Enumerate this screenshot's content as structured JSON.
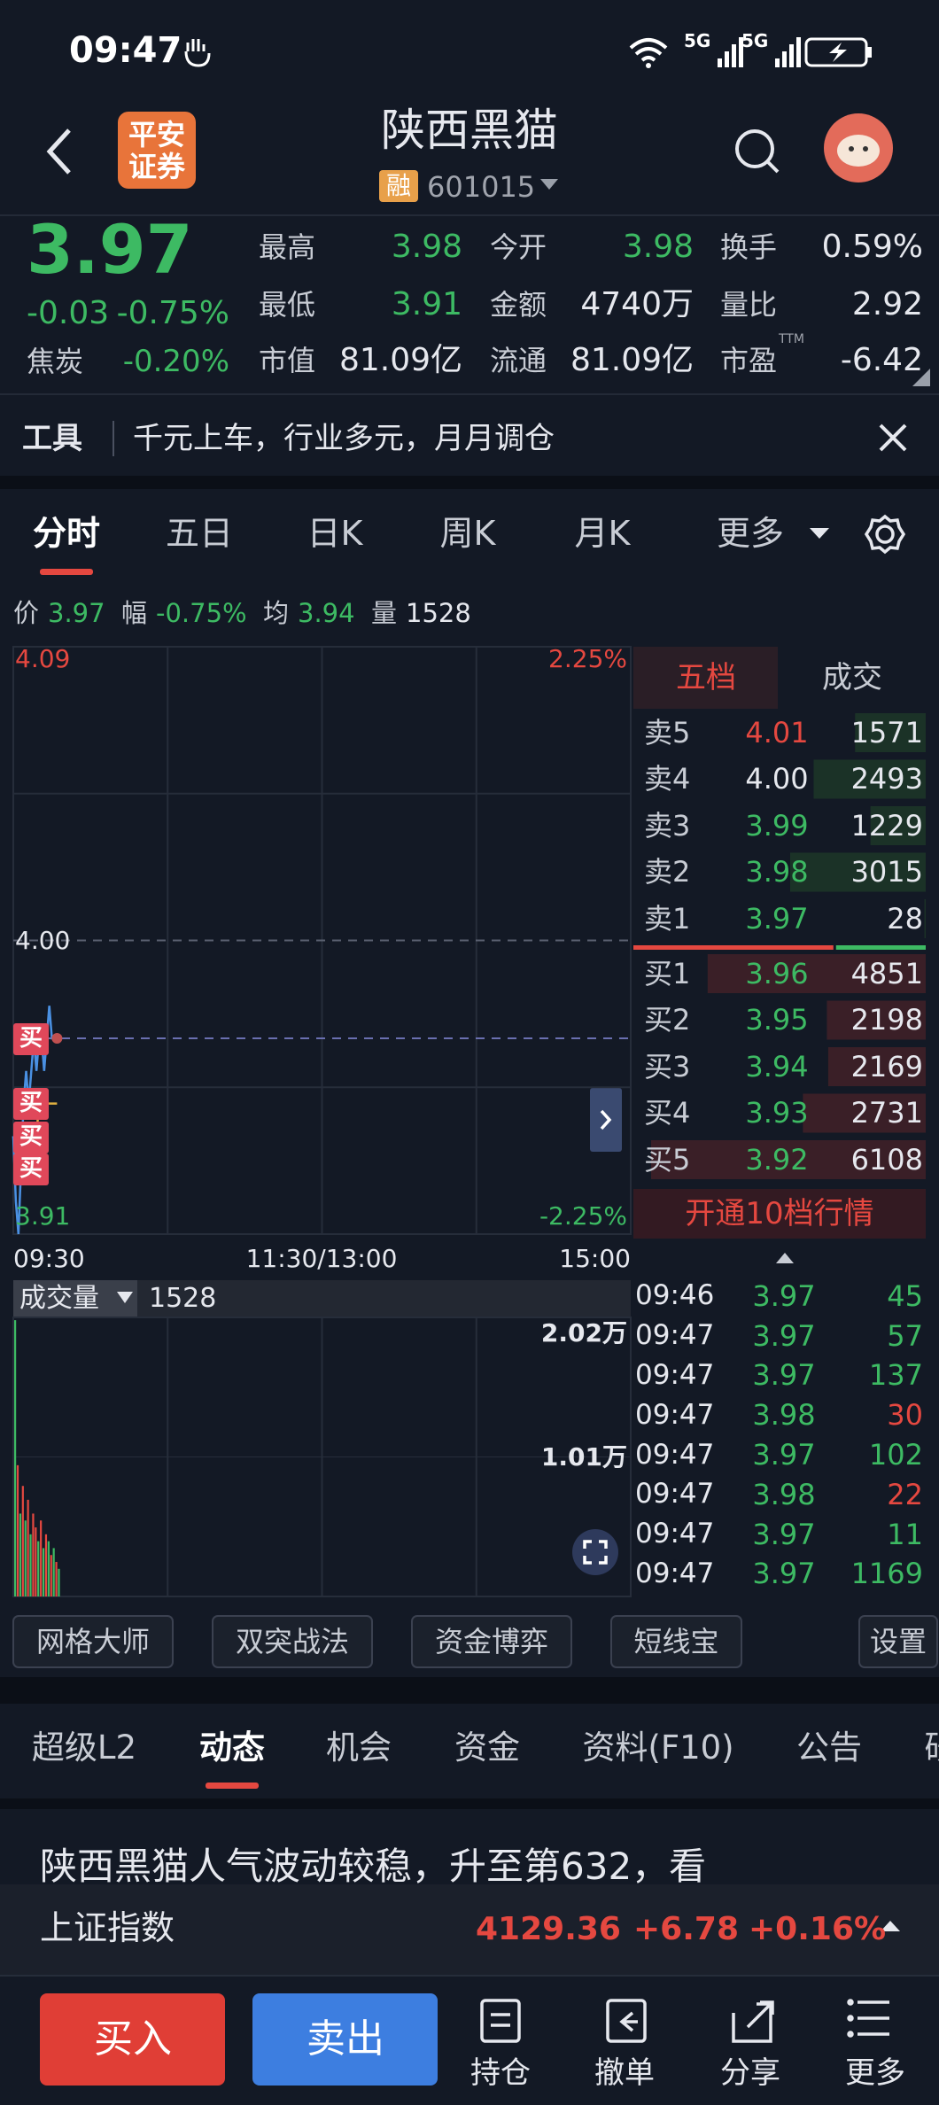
{
  "status_bar": {
    "time": "09:47",
    "network": [
      "5G",
      "5G"
    ]
  },
  "header": {
    "logo": [
      "平安",
      "证券"
    ],
    "title": "陕西黑猫",
    "badge": "融",
    "code": "601015"
  },
  "quote": {
    "price": "3.97",
    "change": "-0.03",
    "change_pct": "-0.75%",
    "sector": "焦炭",
    "sector_pct": "-0.20%",
    "stats": [
      {
        "label": "最高",
        "value": "3.98",
        "color": "#3dba63"
      },
      {
        "label": "今开",
        "value": "3.98",
        "color": "#3dba63"
      },
      {
        "label": "换手",
        "value": "0.59%",
        "color": "#e6e8ee"
      },
      {
        "label": "最低",
        "value": "3.91",
        "color": "#3dba63"
      },
      {
        "label": "金额",
        "value": "4740万",
        "color": "#e6e8ee"
      },
      {
        "label": "量比",
        "value": "2.92",
        "color": "#e6e8ee"
      },
      {
        "label": "市值",
        "value": "81.09亿",
        "color": "#e6e8ee"
      },
      {
        "label": "流通",
        "value": "81.09亿",
        "color": "#e6e8ee"
      },
      {
        "label": "市盈",
        "sup": "TTM",
        "value": "-6.42",
        "color": "#e6e8ee"
      }
    ]
  },
  "tool_banner": {
    "tag": "工具",
    "text": "千元上车，行业多元，月月调仓"
  },
  "chart_tabs": [
    "分时",
    "五日",
    "日K",
    "周K",
    "月K",
    "更多"
  ],
  "summary": [
    {
      "label": "价",
      "value": "3.97"
    },
    {
      "label": "幅",
      "value": "-0.75%"
    },
    {
      "label": "均",
      "value": "3.94"
    },
    {
      "label": "量",
      "value": "1528"
    }
  ],
  "intraday": {
    "ylim": [
      3.91,
      4.09
    ],
    "yticks": [
      4.09,
      {
        "value": 4,
        "label": "4.00"
      },
      3.91
    ],
    "pct_ticks": [
      {
        "value": 4.09,
        "label": "2.25%"
      },
      {
        "value": 3.91,
        "label": "-2.25%"
      }
    ],
    "xticks": [
      "09:30",
      "11:30/13:00",
      "15:00"
    ],
    "minutes": 240,
    "prices": [
      3.94,
      3.92,
      3.91,
      3.93,
      3.95,
      3.96,
      3.95,
      3.96,
      3.97,
      3.96,
      3.97,
      3.97,
      3.96,
      3.97,
      3.98,
      3.97,
      3.97,
      3.97
    ],
    "averages": [
      3.94,
      3.93,
      3.93,
      3.93,
      3.93,
      3.94,
      3.94,
      3.94,
      3.94,
      3.94,
      3.95,
      3.95,
      3.95,
      3.95,
      3.95,
      3.95,
      3.95,
      3.95
    ],
    "price_color": "#4a90e2",
    "average_color": "#e0b040",
    "trade_markers": [
      "买",
      "买",
      "买",
      "买"
    ]
  },
  "volume": {
    "label": "成交量",
    "value": "1528",
    "ylim": [
      0,
      2.02
    ],
    "yticks": [
      {
        "value": 2.02,
        "label": "2.02万"
      },
      {
        "value": 1.01,
        "label": "1.01万"
      }
    ],
    "bars": [
      2.0,
      0.95,
      0.6,
      0.8,
      0.55,
      0.7,
      0.45,
      0.6,
      0.5,
      0.4,
      0.55,
      0.35,
      0.45,
      0.4,
      0.3,
      0.35,
      0.25,
      0.2
    ],
    "bar_colors": [
      "#3dba63",
      "#e54840",
      "#3dba63",
      "#e54840",
      "#3dba63",
      "#e54840",
      "#3dba63",
      "#e54840",
      "#e54840",
      "#3dba63",
      "#e54840",
      "#3dba63",
      "#e54840",
      "#3dba63",
      "#e54840",
      "#3dba63",
      "#e54840",
      "#3dba63"
    ]
  },
  "order_book": {
    "tabs": [
      "五档",
      "成交"
    ],
    "asks": [
      {
        "label": "卖5",
        "price": "4.01",
        "volume": 1571,
        "color": "#e54840"
      },
      {
        "label": "卖4",
        "price": "4.00",
        "volume": 2493,
        "color": "#e6e8ee"
      },
      {
        "label": "卖3",
        "price": "3.99",
        "volume": 1229,
        "color": "#3dba63"
      },
      {
        "label": "卖2",
        "price": "3.98",
        "volume": 3015,
        "color": "#3dba63"
      },
      {
        "label": "卖1",
        "price": "3.97",
        "volume": 28,
        "color": "#3dba63"
      }
    ],
    "bids": [
      {
        "label": "买1",
        "price": "3.96",
        "volume": 4851,
        "color": "#3dba63"
      },
      {
        "label": "买2",
        "price": "3.95",
        "volume": 2198,
        "color": "#3dba63"
      },
      {
        "label": "买3",
        "price": "3.94",
        "volume": 2169,
        "color": "#3dba63"
      },
      {
        "label": "买4",
        "price": "3.93",
        "volume": 2731,
        "color": "#3dba63"
      },
      {
        "label": "买5",
        "price": "3.92",
        "volume": 6108,
        "color": "#3dba63"
      }
    ],
    "upgrade": "开通10档行情"
  },
  "trades": [
    {
      "time": "09:46",
      "price": "3.97",
      "volume": "45",
      "color": "#3dba63"
    },
    {
      "time": "09:47",
      "price": "3.97",
      "volume": "57",
      "color": "#3dba63"
    },
    {
      "time": "09:47",
      "price": "3.97",
      "volume": "137",
      "color": "#3dba63"
    },
    {
      "time": "09:47",
      "price": "3.98",
      "volume": "30",
      "color": "#e54840"
    },
    {
      "time": "09:47",
      "price": "3.97",
      "volume": "102",
      "color": "#3dba63"
    },
    {
      "time": "09:47",
      "price": "3.98",
      "volume": "22",
      "color": "#e54840"
    },
    {
      "time": "09:47",
      "price": "3.97",
      "volume": "11",
      "color": "#3dba63"
    },
    {
      "time": "09:47",
      "price": "3.97",
      "volume": "1169",
      "color": "#3dba63"
    }
  ],
  "tools": [
    "网格大师",
    "双突战法",
    "资金博弈",
    "短线宝",
    "设置"
  ],
  "info_tabs": [
    "超级L2",
    "动态",
    "机会",
    "资金",
    "资料(F10)",
    "公告",
    "研"
  ],
  "news": {
    "headline": "陕西黑猫人气波动较稳，升至第632，看"
  },
  "index_bar": {
    "name": "上证指数",
    "value": "4129.36",
    "change": "+6.78",
    "change_pct": "+0.16%"
  },
  "bottom_bar": {
    "buy": "买入",
    "sell": "卖出",
    "actions": [
      "持仓",
      "撤单",
      "分享",
      "更多"
    ]
  }
}
